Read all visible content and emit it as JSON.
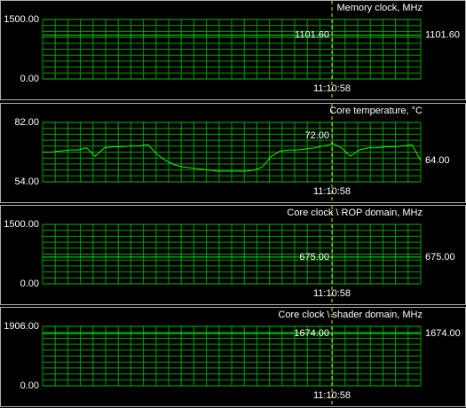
{
  "chart_data": [
    {
      "type": "line",
      "title": "Memory clock, MHz",
      "color": "#00ff00",
      "values": [
        1101.6,
        1101.6
      ],
      "ylim": [
        0,
        1500
      ],
      "yticks": [
        {
          "value": 0,
          "label": "0.00"
        },
        {
          "value": 1500,
          "label": "1500.00"
        }
      ],
      "cursor": {
        "time": "11:10:58",
        "label": "1101.60"
      },
      "current": "1101.60"
    },
    {
      "type": "line",
      "title": "Core temperature, °C",
      "color": "#00ff00",
      "values": [
        68,
        68,
        68.5,
        69,
        69,
        70,
        66,
        70,
        70.5,
        70.5,
        71,
        71,
        71.5,
        67,
        64,
        62,
        61,
        60.5,
        60,
        59.5,
        59,
        59,
        59,
        59,
        59.5,
        61,
        66,
        68.5,
        69,
        69,
        69.5,
        70,
        71,
        72,
        70,
        66,
        69,
        70,
        70,
        70.5,
        70.5,
        71,
        71.5,
        64
      ],
      "ylim": [
        54,
        82
      ],
      "yticks": [
        {
          "value": 54,
          "label": "54.00"
        },
        {
          "value": 82,
          "label": "82.00"
        }
      ],
      "cursor": {
        "time": "11:10:58",
        "label": "72.00"
      },
      "current": "64.00"
    },
    {
      "type": "line",
      "title": "Core clock \\ ROP domain, MHz",
      "color": "#00ff00",
      "values": [
        675,
        675
      ],
      "ylim": [
        0,
        1500
      ],
      "yticks": [
        {
          "value": 0,
          "label": "0.00"
        },
        {
          "value": 1500,
          "label": "1500.00"
        }
      ],
      "cursor": {
        "time": "11:10:58",
        "label": "675.00"
      },
      "current": "675.00"
    },
    {
      "type": "line",
      "title": "Core clock \\ shader domain, MHz",
      "color": "#00ff00",
      "values": [
        1674,
        1674
      ],
      "ylim": [
        0,
        1906
      ],
      "yticks": [
        {
          "value": 0,
          "label": "0.00"
        },
        {
          "value": 1906,
          "label": "1906.00"
        }
      ],
      "cursor": {
        "time": "11:10:58",
        "label": "1674.00"
      },
      "current": "1674.00"
    }
  ]
}
